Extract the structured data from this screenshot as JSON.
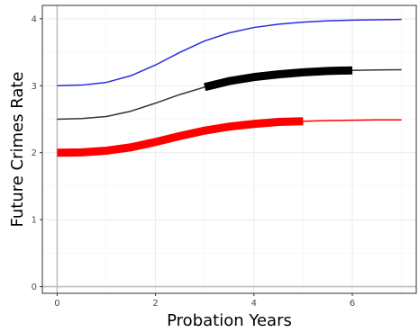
{
  "chart_data": {
    "type": "line",
    "title": "",
    "xlabel": "Probation Years",
    "ylabel": "Future Crimes Rate",
    "xlim": [
      -0.3,
      7.3
    ],
    "ylim": [
      -0.1,
      4.2
    ],
    "x_ticks": [
      0,
      2,
      4,
      6
    ],
    "y_ticks": [
      0,
      1,
      2,
      3,
      4
    ],
    "x_tick_labels": [
      "0",
      "2",
      "4",
      "6"
    ],
    "y_tick_labels": [
      "0",
      "1",
      "2",
      "3",
      "4"
    ],
    "grid": true,
    "legend": "none",
    "reference_lines": {
      "x": 0,
      "y": 0,
      "color": "#bfbfbf"
    },
    "series": [
      {
        "color": "#2b2bdd",
        "x": [
          0,
          0.5,
          1,
          1.5,
          2,
          2.5,
          3,
          3.5,
          4,
          4.5,
          5,
          5.5,
          6,
          6.5,
          7
        ],
        "y": [
          3.0,
          3.01,
          3.05,
          3.15,
          3.31,
          3.5,
          3.67,
          3.79,
          3.87,
          3.92,
          3.95,
          3.97,
          3.98,
          3.985,
          3.99
        ]
      },
      {
        "color": "#333333",
        "x": [
          0,
          0.5,
          1,
          1.5,
          2,
          2.5,
          3,
          3.5,
          4,
          4.5,
          5,
          5.5,
          6,
          6.5,
          7
        ],
        "y": [
          2.5,
          2.51,
          2.54,
          2.62,
          2.74,
          2.87,
          2.98,
          3.07,
          3.13,
          3.17,
          3.2,
          3.22,
          3.23,
          3.235,
          3.24
        ],
        "highlight": {
          "from": 3,
          "to": 6,
          "color": "#000000"
        }
      },
      {
        "color": "#ff0000",
        "x": [
          0,
          0.5,
          1,
          1.5,
          2,
          2.5,
          3,
          3.5,
          4,
          4.5,
          5,
          5.5,
          6,
          6.5,
          7
        ],
        "y": [
          2.0,
          2.005,
          2.03,
          2.08,
          2.16,
          2.25,
          2.33,
          2.39,
          2.43,
          2.46,
          2.47,
          2.48,
          2.485,
          2.49,
          2.49
        ],
        "highlight": {
          "from": 0,
          "to": 5,
          "color": "#ff0000"
        }
      }
    ]
  }
}
